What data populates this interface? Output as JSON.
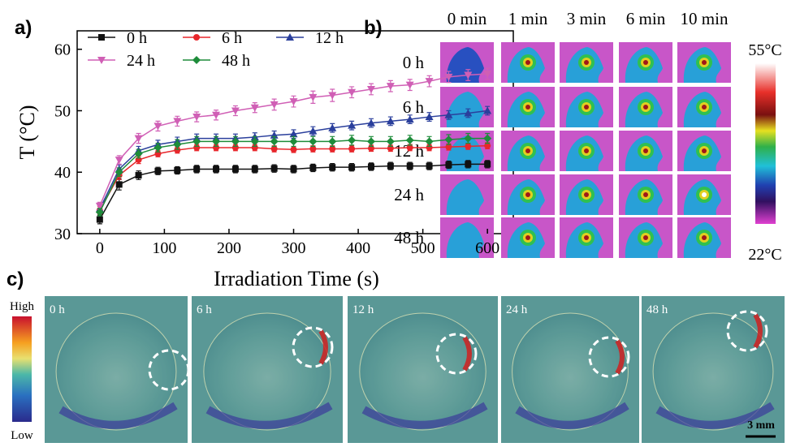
{
  "panel_a": {
    "label": "a)"
  },
  "chart_data": {
    "type": "line",
    "x_label": "Irradiation Time (s)",
    "y_label": "T (°C)",
    "x": [
      0,
      30,
      60,
      90,
      120,
      150,
      180,
      210,
      240,
      270,
      300,
      330,
      360,
      390,
      420,
      450,
      480,
      510,
      540,
      570,
      600
    ],
    "xlim": [
      -35,
      640
    ],
    "xticks": [
      0,
      100,
      200,
      300,
      400,
      500,
      600
    ],
    "ylim": [
      30,
      63
    ],
    "yticks": [
      30,
      40,
      50,
      60
    ],
    "series": [
      {
        "name": "0 h",
        "color": "#111111",
        "marker": "square",
        "values": [
          32.3,
          38,
          39.5,
          40.2,
          40.3,
          40.5,
          40.5,
          40.5,
          40.5,
          40.6,
          40.5,
          40.7,
          40.8,
          40.8,
          40.9,
          41,
          41,
          41,
          41.2,
          41.3,
          41.3
        ],
        "errors": [
          0.7,
          0.9,
          0.7,
          0.6,
          0.6,
          0.6,
          0.6,
          0.6,
          0.6,
          0.6,
          0.6,
          0.6,
          0.6,
          0.6,
          0.6,
          0.6,
          0.6,
          0.6,
          0.6,
          0.6,
          0.6
        ]
      },
      {
        "name": "6 h",
        "color": "#e8262b",
        "marker": "circle",
        "values": [
          33.8,
          39.5,
          42,
          43,
          43.6,
          44,
          44,
          44,
          44,
          43.8,
          43.7,
          43.8,
          43.8,
          43.8,
          43.9,
          43.9,
          44,
          44,
          44.1,
          44.2,
          44.3
        ],
        "errors": [
          0.6,
          0.7,
          0.6,
          0.5,
          0.5,
          0.5,
          0.5,
          0.5,
          0.5,
          0.5,
          0.5,
          0.5,
          0.5,
          0.5,
          0.5,
          0.5,
          0.5,
          0.5,
          0.5,
          0.5,
          0.5
        ]
      },
      {
        "name": "12 h",
        "color": "#2a3f9c",
        "marker": "triangle-up",
        "values": [
          34,
          40.5,
          43.5,
          44.5,
          45,
          45.5,
          45.5,
          45.5,
          45.7,
          46,
          46.2,
          46.7,
          47.2,
          47.6,
          48,
          48.3,
          48.6,
          49,
          49.3,
          49.6,
          50
        ],
        "errors": [
          0.6,
          0.7,
          0.7,
          0.7,
          0.7,
          0.7,
          0.7,
          0.7,
          0.7,
          0.7,
          0.7,
          0.7,
          0.7,
          0.7,
          0.7,
          0.7,
          0.7,
          0.7,
          0.7,
          0.7,
          0.7
        ]
      },
      {
        "name": "24 h",
        "color": "#d05fb5",
        "marker": "triangle-down",
        "values": [
          34.5,
          42,
          45.5,
          47.5,
          48.3,
          49,
          49.3,
          50,
          50.5,
          51,
          51.5,
          52.2,
          52.5,
          53,
          53.5,
          54,
          54.2,
          54.8,
          55.5,
          55.8,
          56
        ],
        "errors": [
          0.6,
          0.7,
          0.8,
          0.8,
          0.8,
          0.8,
          0.8,
          0.8,
          0.8,
          0.9,
          0.9,
          1,
          1,
          0.9,
          0.9,
          0.9,
          0.9,
          0.9,
          0.9,
          0.9,
          0.9
        ]
      },
      {
        "name": "48 h",
        "color": "#1e8c3a",
        "marker": "diamond",
        "values": [
          33.5,
          40,
          43,
          44,
          44.5,
          45,
          45,
          45,
          45,
          45,
          45,
          45,
          45,
          45.2,
          45,
          45,
          45.2,
          45,
          45.3,
          45.5,
          45.5
        ],
        "errors": [
          0.6,
          0.7,
          0.7,
          0.7,
          0.8,
          0.8,
          0.8,
          0.8,
          0.8,
          0.8,
          0.8,
          0.8,
          0.8,
          0.8,
          0.8,
          0.8,
          0.8,
          0.8,
          0.8,
          0.8,
          0.8
        ]
      }
    ],
    "legend": "top"
  },
  "panel_b": {
    "label": "b)",
    "columns": [
      "0 min",
      "1 min",
      "3 min",
      "6 min",
      "10 min"
    ],
    "rows": [
      "0 h",
      "6 h",
      "12 h",
      "24 h",
      "48 h"
    ],
    "colorbar": {
      "max": "55°C",
      "min": "22°C"
    }
  },
  "panel_c": {
    "label": "c)",
    "colorbar": {
      "high": "High",
      "low": "Low"
    },
    "images": [
      "0 h",
      "6 h",
      "12 h",
      "24 h",
      "48 h"
    ],
    "scale_bar": "3 mm"
  }
}
